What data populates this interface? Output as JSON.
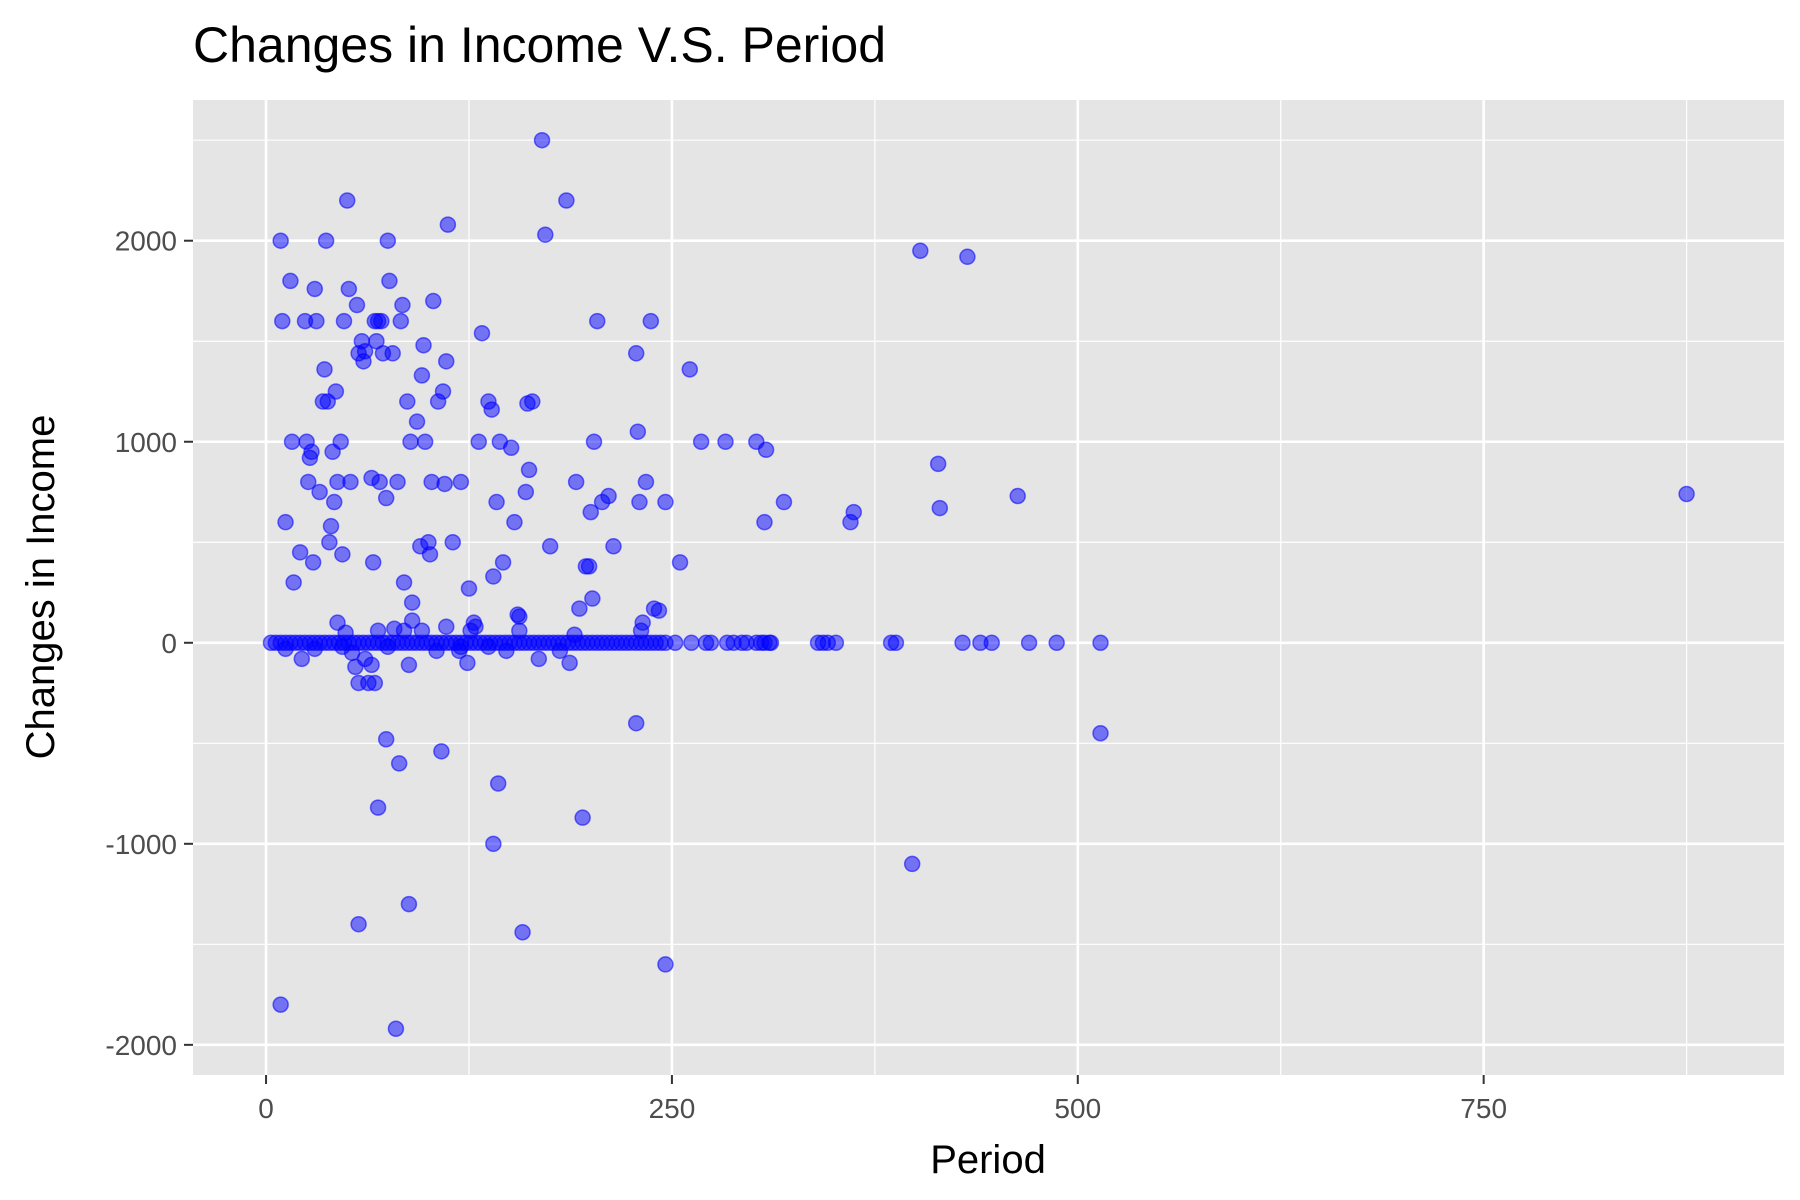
{
  "chart_data": {
    "type": "scatter",
    "title": "Changes in Income V.S. Period",
    "xlabel": "Period",
    "ylabel": "Changes in Income",
    "xlim": [
      -45,
      935
    ],
    "ylim": [
      -2150,
      2700
    ],
    "x_ticks": [
      0,
      250,
      500,
      750
    ],
    "x_tick_labels": [
      "0",
      "250",
      "500",
      "750"
    ],
    "y_ticks": [
      -2000,
      -1000,
      0,
      1000,
      2000
    ],
    "y_tick_labels": [
      "-2000",
      "-1000",
      "0",
      "1000",
      "2000"
    ],
    "grid": true,
    "legend": "none",
    "colors": {
      "point": "#0000ff",
      "panel": "#e5e5e5",
      "grid": "#ffffff",
      "tick": "#4d4d4d"
    },
    "series": [
      {
        "points": [
          [
            9,
            2000
          ],
          [
            10,
            1600
          ],
          [
            12,
            600
          ],
          [
            15,
            1800
          ],
          [
            16,
            1000
          ],
          [
            17,
            300
          ],
          [
            21,
            450
          ],
          [
            24,
            1600
          ],
          [
            25,
            1000
          ],
          [
            26,
            800
          ],
          [
            27,
            920
          ],
          [
            28,
            950
          ],
          [
            29,
            400
          ],
          [
            30,
            1760
          ],
          [
            31,
            1600
          ],
          [
            33,
            750
          ],
          [
            35,
            1200
          ],
          [
            36,
            1360
          ],
          [
            37,
            2000
          ],
          [
            38,
            1200
          ],
          [
            39,
            500
          ],
          [
            40,
            580
          ],
          [
            41,
            950
          ],
          [
            42,
            700
          ],
          [
            43,
            1250
          ],
          [
            44,
            800
          ],
          [
            46,
            1000
          ],
          [
            47,
            440
          ],
          [
            48,
            1600
          ],
          [
            50,
            2200
          ],
          [
            51,
            1760
          ],
          [
            52,
            800
          ],
          [
            56,
            1680
          ],
          [
            57,
            1440
          ],
          [
            59,
            1500
          ],
          [
            60,
            1400
          ],
          [
            61,
            1450
          ],
          [
            65,
            820
          ],
          [
            66,
            400
          ],
          [
            67,
            1600
          ],
          [
            68,
            1500
          ],
          [
            69,
            1600
          ],
          [
            70,
            800
          ],
          [
            71,
            1600
          ],
          [
            72,
            1440
          ],
          [
            74,
            720
          ],
          [
            75,
            2000
          ],
          [
            76,
            1800
          ],
          [
            78,
            1440
          ],
          [
            81,
            800
          ],
          [
            83,
            1600
          ],
          [
            84,
            1680
          ],
          [
            85,
            300
          ],
          [
            87,
            1200
          ],
          [
            89,
            1000
          ],
          [
            90,
            200
          ],
          [
            93,
            1100
          ],
          [
            95,
            480
          ],
          [
            96,
            1330
          ],
          [
            97,
            1480
          ],
          [
            98,
            1000
          ],
          [
            100,
            500
          ],
          [
            101,
            440
          ],
          [
            102,
            800
          ],
          [
            103,
            1700
          ],
          [
            106,
            1200
          ],
          [
            109,
            1250
          ],
          [
            110,
            790
          ],
          [
            111,
            1400
          ],
          [
            112,
            2080
          ],
          [
            115,
            500
          ],
          [
            120,
            800
          ],
          [
            125,
            270
          ],
          [
            128,
            100
          ],
          [
            131,
            1000
          ],
          [
            133,
            1540
          ],
          [
            137,
            1200
          ],
          [
            139,
            1160
          ],
          [
            140,
            330
          ],
          [
            142,
            700
          ],
          [
            144,
            1000
          ],
          [
            146,
            400
          ],
          [
            151,
            970
          ],
          [
            153,
            600
          ],
          [
            155,
            140
          ],
          [
            156,
            130
          ],
          [
            160,
            750
          ],
          [
            161,
            1190
          ],
          [
            162,
            860
          ],
          [
            164,
            1200
          ],
          [
            170,
            2500
          ],
          [
            172,
            2030
          ],
          [
            175,
            480
          ],
          [
            185,
            2200
          ],
          [
            191,
            800
          ],
          [
            193,
            170
          ],
          [
            197,
            380
          ],
          [
            199,
            380
          ],
          [
            200,
            650
          ],
          [
            201,
            220
          ],
          [
            202,
            1000
          ],
          [
            204,
            1600
          ],
          [
            207,
            700
          ],
          [
            211,
            730
          ],
          [
            214,
            480
          ],
          [
            228,
            1440
          ],
          [
            229,
            1050
          ],
          [
            230,
            700
          ],
          [
            232,
            100
          ],
          [
            234,
            800
          ],
          [
            237,
            1600
          ],
          [
            239,
            170
          ],
          [
            242,
            160
          ],
          [
            246,
            700
          ],
          [
            255,
            400
          ],
          [
            261,
            1360
          ],
          [
            268,
            1000
          ],
          [
            283,
            1000
          ],
          [
            302,
            1000
          ],
          [
            307,
            600
          ],
          [
            308,
            960
          ],
          [
            319,
            700
          ],
          [
            360,
            600
          ],
          [
            362,
            650
          ],
          [
            403,
            1950
          ],
          [
            414,
            890
          ],
          [
            415,
            670
          ],
          [
            432,
            1920
          ],
          [
            463,
            730
          ],
          [
            875,
            740
          ],
          [
            3,
            0
          ],
          [
            6,
            0
          ],
          [
            9,
            0
          ],
          [
            12,
            0
          ],
          [
            15,
            0
          ],
          [
            18,
            0
          ],
          [
            21,
            0
          ],
          [
            24,
            0
          ],
          [
            27,
            0
          ],
          [
            30,
            0
          ],
          [
            33,
            0
          ],
          [
            36,
            0
          ],
          [
            39,
            0
          ],
          [
            42,
            0
          ],
          [
            45,
            0
          ],
          [
            48,
            0
          ],
          [
            51,
            0
          ],
          [
            54,
            0
          ],
          [
            57,
            0
          ],
          [
            60,
            0
          ],
          [
            63,
            0
          ],
          [
            66,
            0
          ],
          [
            69,
            0
          ],
          [
            72,
            0
          ],
          [
            75,
            0
          ],
          [
            78,
            0
          ],
          [
            81,
            0
          ],
          [
            84,
            0
          ],
          [
            87,
            0
          ],
          [
            90,
            0
          ],
          [
            93,
            0
          ],
          [
            96,
            0
          ],
          [
            99,
            0
          ],
          [
            102,
            0
          ],
          [
            105,
            0
          ],
          [
            108,
            0
          ],
          [
            111,
            0
          ],
          [
            114,
            0
          ],
          [
            117,
            0
          ],
          [
            120,
            0
          ],
          [
            123,
            0
          ],
          [
            126,
            0
          ],
          [
            129,
            0
          ],
          [
            132,
            0
          ],
          [
            135,
            0
          ],
          [
            138,
            0
          ],
          [
            141,
            0
          ],
          [
            144,
            0
          ],
          [
            147,
            0
          ],
          [
            150,
            0
          ],
          [
            153,
            0
          ],
          [
            156,
            0
          ],
          [
            159,
            0
          ],
          [
            162,
            0
          ],
          [
            165,
            0
          ],
          [
            168,
            0
          ],
          [
            171,
            0
          ],
          [
            174,
            0
          ],
          [
            177,
            0
          ],
          [
            180,
            0
          ],
          [
            183,
            0
          ],
          [
            186,
            0
          ],
          [
            189,
            0
          ],
          [
            192,
            0
          ],
          [
            195,
            0
          ],
          [
            198,
            0
          ],
          [
            201,
            0
          ],
          [
            204,
            0
          ],
          [
            207,
            0
          ],
          [
            210,
            0
          ],
          [
            213,
            0
          ],
          [
            216,
            0
          ],
          [
            219,
            0
          ],
          [
            222,
            0
          ],
          [
            225,
            0
          ],
          [
            228,
            0
          ],
          [
            231,
            0
          ],
          [
            234,
            0
          ],
          [
            237,
            0
          ],
          [
            240,
            0
          ],
          [
            243,
            0
          ],
          [
            246,
            0
          ],
          [
            252,
            0
          ],
          [
            262,
            0
          ],
          [
            271,
            0
          ],
          [
            274,
            0
          ],
          [
            284,
            0
          ],
          [
            288,
            0
          ],
          [
            293,
            0
          ],
          [
            296,
            0
          ],
          [
            302,
            0
          ],
          [
            305,
            0
          ],
          [
            307,
            0
          ],
          [
            310,
            0
          ],
          [
            311,
            0
          ],
          [
            340,
            0
          ],
          [
            343,
            0
          ],
          [
            346,
            0
          ],
          [
            351,
            0
          ],
          [
            385,
            0
          ],
          [
            388,
            0
          ],
          [
            429,
            0
          ],
          [
            440,
            0
          ],
          [
            447,
            0
          ],
          [
            470,
            0
          ],
          [
            487,
            0
          ],
          [
            514,
            0
          ],
          [
            12,
            -30
          ],
          [
            22,
            -80
          ],
          [
            30,
            -30
          ],
          [
            44,
            100
          ],
          [
            47,
            -20
          ],
          [
            49,
            50
          ],
          [
            53,
            -50
          ],
          [
            55,
            -120
          ],
          [
            57,
            -200
          ],
          [
            61,
            -80
          ],
          [
            63,
            -200
          ],
          [
            65,
            -110
          ],
          [
            67,
            -200
          ],
          [
            69,
            60
          ],
          [
            75,
            -20
          ],
          [
            79,
            70
          ],
          [
            85,
            60
          ],
          [
            88,
            -110
          ],
          [
            90,
            110
          ],
          [
            96,
            60
          ],
          [
            105,
            -40
          ],
          [
            111,
            80
          ],
          [
            119,
            -40
          ],
          [
            120,
            -20
          ],
          [
            124,
            -100
          ],
          [
            126,
            60
          ],
          [
            129,
            80
          ],
          [
            137,
            -20
          ],
          [
            148,
            -40
          ],
          [
            156,
            60
          ],
          [
            168,
            -80
          ],
          [
            181,
            -40
          ],
          [
            187,
            -100
          ],
          [
            190,
            40
          ],
          [
            231,
            60
          ],
          [
            9,
            -1800
          ],
          [
            57,
            -1400
          ],
          [
            69,
            -820
          ],
          [
            74,
            -480
          ],
          [
            80,
            -1920
          ],
          [
            82,
            -600
          ],
          [
            88,
            -1300
          ],
          [
            108,
            -540
          ],
          [
            140,
            -1000
          ],
          [
            143,
            -700
          ],
          [
            158,
            -1440
          ],
          [
            195,
            -870
          ],
          [
            228,
            -400
          ],
          [
            246,
            -1600
          ],
          [
            398,
            -1100
          ],
          [
            514,
            -450
          ]
        ]
      }
    ]
  }
}
